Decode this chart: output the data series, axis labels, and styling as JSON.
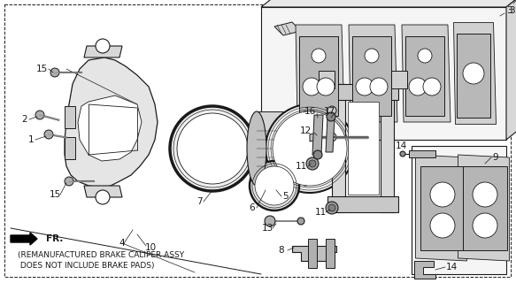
{
  "bg_color": "#ffffff",
  "line_color": "#1a1a1a",
  "gray_fill": "#e0e0e0",
  "mid_gray": "#c8c8c8",
  "dark_gray": "#a0a0a0",
  "note_line1": "(REMANUFACTURED BRAKE CALIPER ASSY",
  "note_line2": " DOES NOT INCLUDE BRAKE PADS)",
  "font_size": 6.5,
  "label_font": 7.5
}
